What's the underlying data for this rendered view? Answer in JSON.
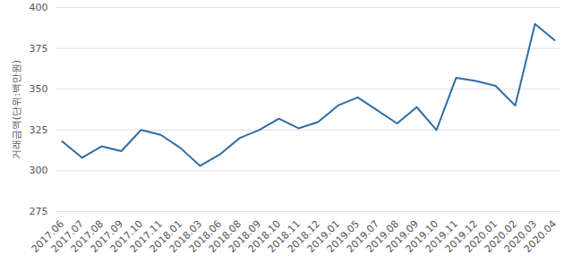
{
  "chart_data": {
    "type": "line",
    "y_label": "거래금액(단위:백만원)",
    "categories": [
      "2017.06",
      "2017.07",
      "2017.08",
      "2017.09",
      "2017.10",
      "2017.11",
      "2018.01",
      "2018.03",
      "2018.06",
      "2018.08",
      "2018.09",
      "2018.10",
      "2018.11",
      "2018.12",
      "2019.01",
      "2019.05",
      "2019.07",
      "2019.08",
      "2019.09",
      "2019.10",
      "2019.11",
      "2019.12",
      "2020.01",
      "2020.02",
      "2020.03",
      "2020.04"
    ],
    "values": [
      318,
      308,
      315,
      312,
      325,
      322,
      314,
      303,
      310,
      320,
      325,
      332,
      326,
      330,
      340,
      345,
      337,
      329,
      339,
      325,
      357,
      355,
      352,
      340,
      390,
      380
    ],
    "color": "#2e6da4",
    "ylim": [
      275,
      400
    ],
    "yticks": [
      275,
      300,
      325,
      350,
      375,
      400
    ],
    "grid": true
  }
}
